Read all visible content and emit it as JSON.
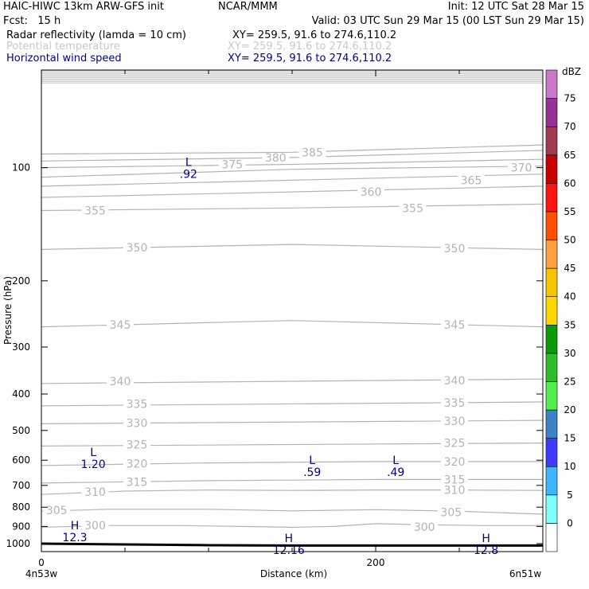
{
  "header": {
    "title_left": "HAIC-HIWC 13km ARW-GFS init",
    "org": "NCAR/MMM",
    "init": "Init: 12 UTC Sat 28 Mar 15",
    "fcst": "Fcst:   15 h",
    "valid": "Valid: 03 UTC Sun 29 Mar 15 (00 LST Sun 29 Mar 15)",
    "field1_name": "Radar reflectivity (lamda = 10 cm)",
    "field1_xy": "XY= 259.5, 91.6 to 274.6,110.2",
    "field2_name": "Potential temperature",
    "field2_xy": "XY= 259.5, 91.6 to 274.6,110.2",
    "field3_name": "Horizontal wind speed",
    "field3_xy": "XY= 259.5, 91.6 to 274.6,110.2",
    "field2_color": "#c8c8c8",
    "field3_color": "#00008b"
  },
  "chart_data": {
    "type": "cross-section contour",
    "xlabel": "Distance (km)",
    "ylabel": "Pressure (hPa)",
    "xlim": [
      0,
      300
    ],
    "ylim": [
      1050,
      55
    ],
    "y_scale": "log",
    "x_ticks": [
      0,
      200
    ],
    "y_ticks": [
      100,
      200,
      300,
      400,
      500,
      600,
      700,
      800,
      900,
      1000
    ],
    "x_end_labels": [
      "4n53w",
      "6n51w"
    ],
    "theta_contours": [
      {
        "level": "300",
        "points": [
          [
            0,
            905
          ],
          [
            40,
            895
          ],
          [
            80,
            895
          ],
          [
            120,
            900
          ],
          [
            150,
            905
          ],
          [
            175,
            900
          ],
          [
            200,
            885
          ],
          [
            225,
            890
          ],
          [
            260,
            895
          ],
          [
            300,
            895
          ]
        ],
        "labels": [
          [
            25,
            895
          ],
          [
            222,
            903
          ]
        ]
      },
      {
        "level": "305",
        "points": [
          [
            0,
            820
          ],
          [
            40,
            810
          ],
          [
            100,
            810
          ],
          [
            150,
            818
          ],
          [
            200,
            812
          ],
          [
            250,
            820
          ],
          [
            300,
            835
          ]
        ],
        "labels": [
          [
            2,
            815
          ],
          [
            238,
            825
          ]
        ]
      },
      {
        "level": "310",
        "points": [
          [
            0,
            740
          ],
          [
            50,
            725
          ],
          [
            100,
            720
          ],
          [
            150,
            722
          ],
          [
            200,
            720
          ],
          [
            250,
            720
          ],
          [
            300,
            722
          ]
        ],
        "labels": [
          [
            25,
            728
          ],
          [
            240,
            720
          ]
        ]
      },
      {
        "level": "315",
        "points": [
          [
            0,
            690
          ],
          [
            100,
            680
          ],
          [
            200,
            675
          ],
          [
            300,
            675
          ]
        ],
        "labels": [
          [
            50,
            685
          ],
          [
            240,
            675
          ]
        ]
      },
      {
        "level": "320",
        "points": [
          [
            0,
            620
          ],
          [
            100,
            610
          ],
          [
            200,
            605
          ],
          [
            300,
            605
          ]
        ],
        "labels": [
          [
            50,
            612
          ],
          [
            240,
            605
          ]
        ]
      },
      {
        "level": "325",
        "points": [
          [
            0,
            550
          ],
          [
            300,
            540
          ]
        ],
        "labels": [
          [
            50,
            545
          ],
          [
            240,
            540
          ]
        ]
      },
      {
        "level": "330",
        "points": [
          [
            0,
            480
          ],
          [
            300,
            470
          ]
        ],
        "labels": [
          [
            50,
            478
          ],
          [
            240,
            472
          ]
        ]
      },
      {
        "level": "335",
        "points": [
          [
            0,
            430
          ],
          [
            300,
            420
          ]
        ],
        "labels": [
          [
            50,
            425
          ],
          [
            240,
            422
          ]
        ]
      },
      {
        "level": "340",
        "points": [
          [
            0,
            375
          ],
          [
            150,
            370
          ],
          [
            300,
            365
          ]
        ],
        "labels": [
          [
            40,
            370
          ],
          [
            240,
            368
          ]
        ]
      },
      {
        "level": "345",
        "points": [
          [
            0,
            265
          ],
          [
            150,
            255
          ],
          [
            300,
            265
          ]
        ],
        "labels": [
          [
            40,
            262
          ],
          [
            240,
            262
          ]
        ]
      },
      {
        "level": "350",
        "points": [
          [
            0,
            165
          ],
          [
            150,
            160
          ],
          [
            300,
            165
          ]
        ],
        "labels": [
          [
            50,
            163
          ],
          [
            240,
            164
          ]
        ]
      },
      {
        "level": "355",
        "points": [
          [
            0,
            130
          ],
          [
            150,
            128
          ],
          [
            300,
            125
          ]
        ],
        "labels": [
          [
            25,
            130
          ],
          [
            215,
            128
          ]
        ]
      },
      {
        "level": "360",
        "points": [
          [
            0,
            120
          ],
          [
            150,
            116
          ],
          [
            300,
            112
          ]
        ],
        "labels": [
          [
            190,
            116
          ]
        ]
      },
      {
        "level": "365",
        "points": [
          [
            0,
            112
          ],
          [
            150,
            108
          ],
          [
            300,
            104
          ]
        ],
        "labels": [
          [
            250,
            108
          ]
        ]
      },
      {
        "level": "370",
        "points": [
          [
            0,
            106
          ],
          [
            150,
            101
          ],
          [
            300,
            99
          ]
        ],
        "labels": [
          [
            280,
            100
          ]
        ]
      },
      {
        "level": "375",
        "points": [
          [
            0,
            100
          ],
          [
            150,
            98
          ],
          [
            300,
            95
          ]
        ],
        "labels": [
          [
            107,
            98
          ]
        ]
      },
      {
        "level": "380",
        "points": [
          [
            0,
            96
          ],
          [
            150,
            94
          ],
          [
            300,
            90
          ]
        ],
        "labels": [
          [
            133,
            94
          ]
        ]
      },
      {
        "level": "385",
        "points": [
          [
            0,
            92
          ],
          [
            150,
            91
          ],
          [
            300,
            87
          ]
        ],
        "labels": [
          [
            155,
            91
          ]
        ]
      }
    ],
    "wind_extrema": [
      {
        "type": "L",
        "value": ".92",
        "x": 88,
        "y": 100
      },
      {
        "type": "L",
        "value": "1.20",
        "x": 31,
        "y": 590
      },
      {
        "type": "L",
        "value": ".59",
        "x": 162,
        "y": 620
      },
      {
        "type": "L",
        "value": ".49",
        "x": 212,
        "y": 620
      },
      {
        "type": "H",
        "value": "12.3",
        "x": 20,
        "y": 925
      },
      {
        "type": "H",
        "value": "12.16",
        "x": 148,
        "y": 1000
      },
      {
        "type": "H",
        "value": "12.8",
        "x": 266,
        "y": 1000
      }
    ],
    "terrain_surface": [
      [
        0,
        1000
      ],
      [
        50,
        1005
      ],
      [
        100,
        1010
      ],
      [
        150,
        1012
      ],
      [
        200,
        1012
      ],
      [
        250,
        1012
      ],
      [
        300,
        1012
      ]
    ],
    "colorbar": {
      "title": "dBZ",
      "levels": [
        "0",
        "5",
        "10",
        "15",
        "20",
        "25",
        "30",
        "35",
        "40",
        "45",
        "50",
        "55",
        "60",
        "65",
        "70",
        "75"
      ],
      "colors": [
        "#ffffff",
        "#7ffeff",
        "#3cb7ff",
        "#3c3cff",
        "#3c82c8",
        "#50ef50",
        "#2dbd2d",
        "#0a9a0a",
        "#ffd700",
        "#f5c600",
        "#ffa040",
        "#ff5000",
        "#ff1414",
        "#c80000",
        "#a03c50",
        "#963296",
        "#c878c8"
      ]
    }
  }
}
